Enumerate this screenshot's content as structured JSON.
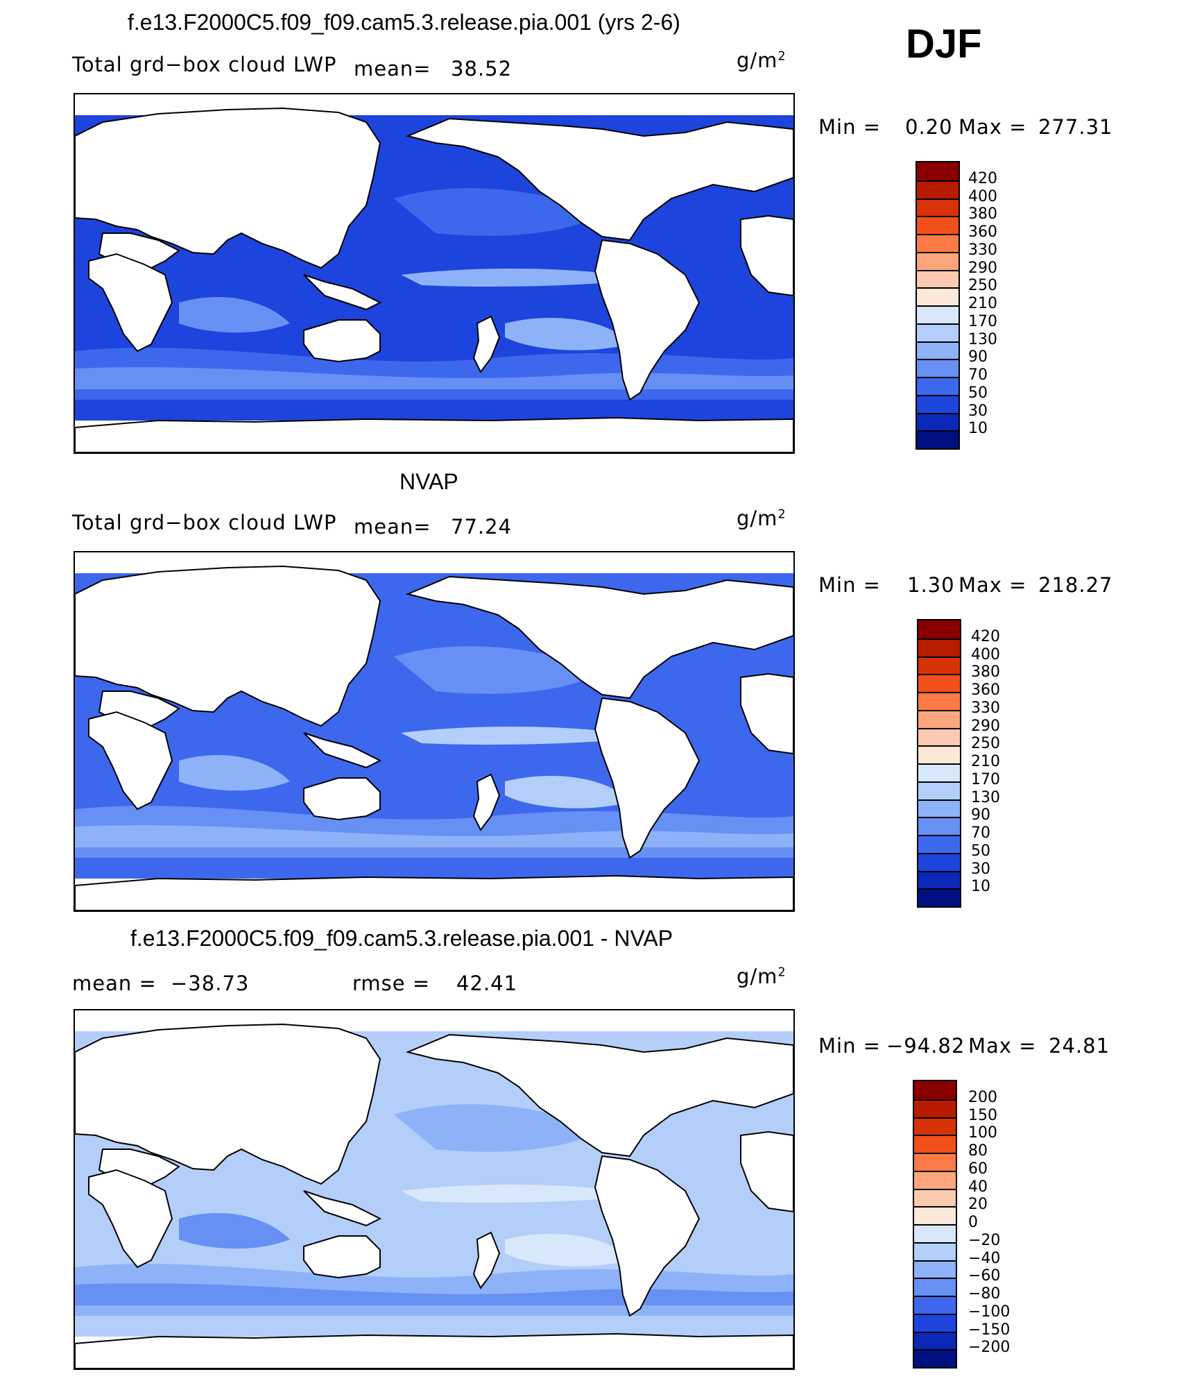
{
  "header": {
    "season": "DJF"
  },
  "panels": [
    {
      "title": "f.e13.F2000C5.f09_f09.cam5.3.release.pia.001 (yrs 2-6)",
      "left_label": "Total grd−box cloud LWP",
      "mean_label": "mean=",
      "mean_value": "38.52",
      "units": "g/m",
      "units_sup": "2",
      "min_label": "Min =",
      "min_value": "0.20",
      "max_label": "Max =",
      "max_value": "277.31",
      "levels": [
        "420",
        "400",
        "380",
        "360",
        "330",
        "290",
        "250",
        "210",
        "170",
        "130",
        "90",
        "70",
        "50",
        "30",
        "10"
      ],
      "colors": [
        "#8a0000",
        "#b81c00",
        "#d83208",
        "#f2501a",
        "#fb7a45",
        "#fca67e",
        "#fccab0",
        "#fbe8d8",
        "#d8e8fa",
        "#b4cefa",
        "#8eb2f8",
        "#6690f4",
        "#3d68ee",
        "#1d44dc",
        "#0c28b8",
        "#001080"
      ],
      "ocean_base": "#1d44dc",
      "ocean_bands": [
        "#3d68ee",
        "#6690f4",
        "#8eb2f8"
      ]
    },
    {
      "title": "NVAP",
      "left_label": "Total grd−box cloud LWP",
      "mean_label": "mean=",
      "mean_value": "77.24",
      "units": "g/m",
      "units_sup": "2",
      "min_label": "Min =",
      "min_value": "1.30",
      "max_label": "Max =",
      "max_value": "218.27",
      "levels": [
        "420",
        "400",
        "380",
        "360",
        "330",
        "290",
        "250",
        "210",
        "170",
        "130",
        "90",
        "70",
        "50",
        "30",
        "10"
      ],
      "colors": [
        "#8a0000",
        "#b81c00",
        "#d83208",
        "#f2501a",
        "#fb7a45",
        "#fca67e",
        "#fccab0",
        "#fbe8d8",
        "#d8e8fa",
        "#b4cefa",
        "#8eb2f8",
        "#6690f4",
        "#3d68ee",
        "#1d44dc",
        "#0c28b8",
        "#001080"
      ],
      "ocean_base": "#3d68ee",
      "ocean_bands": [
        "#6690f4",
        "#8eb2f8",
        "#b4cefa"
      ]
    },
    {
      "title": "f.e13.F2000C5.f09_f09.cam5.3.release.pia.001 - NVAP",
      "left_label": "mean =",
      "mean_label": "",
      "mean_value": "−38.73",
      "rmse_label": "rmse =",
      "rmse_value": "42.41",
      "units": "g/m",
      "units_sup": "2",
      "min_label": "Min =",
      "min_value": "−94.82",
      "max_label": "Max =",
      "max_value": "24.81",
      "levels": [
        "200",
        "150",
        "100",
        "80",
        "60",
        "40",
        "20",
        "0",
        "−20",
        "−40",
        "−60",
        "−80",
        "−100",
        "−150",
        "−200"
      ],
      "colors": [
        "#8a0000",
        "#b81c00",
        "#d83208",
        "#f2501a",
        "#fb7a45",
        "#fca67e",
        "#fccab0",
        "#fbe8d8",
        "#d8e8fa",
        "#b4cefa",
        "#8eb2f8",
        "#6690f4",
        "#3d68ee",
        "#1d44dc",
        "#0c28b8",
        "#001080"
      ],
      "ocean_base": "#b4cefa",
      "ocean_bands": [
        "#8eb2f8",
        "#6690f4",
        "#d8e8fa"
      ]
    }
  ]
}
